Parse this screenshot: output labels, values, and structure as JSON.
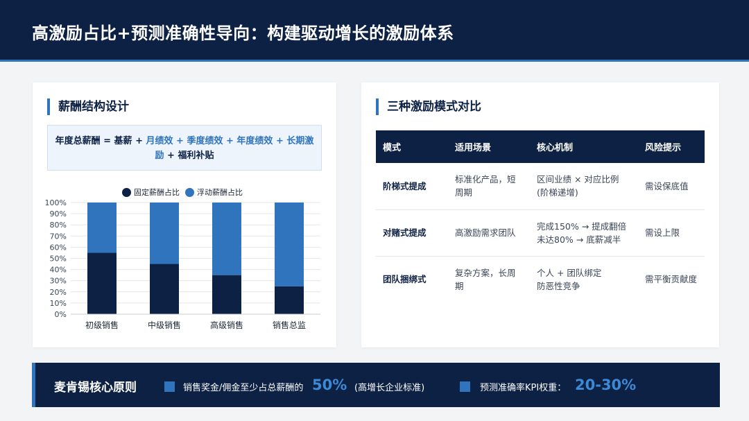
{
  "header": {
    "title": "高激励占比+预测准确性导向：构建驱动增长的激励体系"
  },
  "left": {
    "title": "薪酬结构设计",
    "formula": {
      "prefix": "年度总薪酬 = 基薪 + ",
      "part1": "月绩效",
      "sep1": " + ",
      "part2": "季度绩效",
      "sep2": " + ",
      "part3": "年度绩效",
      "sep3": " + ",
      "part4": "长期激励",
      "suffix": " + 福利补贴"
    }
  },
  "chart_data": {
    "type": "bar",
    "stacked": true,
    "categories": [
      "初级销售",
      "中级销售",
      "高级销售",
      "销售总监"
    ],
    "series": [
      {
        "name": "固定薪酬占比",
        "color": "#0d2144",
        "values": [
          55,
          45,
          35,
          25
        ]
      },
      {
        "name": "浮动薪酬占比",
        "color": "#2f74bd",
        "values": [
          45,
          55,
          65,
          75
        ]
      }
    ],
    "ylim": [
      0,
      100
    ],
    "yticks": [
      "0%",
      "10%",
      "20%",
      "30%",
      "40%",
      "50%",
      "60%",
      "70%",
      "80%",
      "90%",
      "100%"
    ],
    "grid": true,
    "legend": "top"
  },
  "right": {
    "title": "三种激励模式对比",
    "table": {
      "headers": [
        "模式",
        "适用场景",
        "核心机制",
        "风险提示"
      ],
      "rows": [
        {
          "mode": "阶梯式提成",
          "scene": "标准化产品，短周期",
          "mech1": "区间业绩 × 对应比例",
          "mech2": "(阶梯递增)",
          "risk": "需设保底值"
        },
        {
          "mode": "对赌式提成",
          "scene": "高激励需求团队",
          "mech1": "完成150% → 提成翻倍",
          "mech2": "未达80% → 底薪减半",
          "risk": "需设上限"
        },
        {
          "mode": "团队捆绑式",
          "scene": "复杂方案，长周期",
          "mech1": "个人 + 团队绑定",
          "mech2": "防恶性竞争",
          "risk": "需平衡贡献度"
        }
      ]
    }
  },
  "footer": {
    "title": "麦肯锡核心原则",
    "item1_text": "销售奖金/佣金至少占总薪酬的",
    "item1_value": "50%",
    "item1_note": "(高增长企业标准)",
    "item2_text": "预测准确率KPI权重：",
    "item2_value": "20-30%"
  }
}
